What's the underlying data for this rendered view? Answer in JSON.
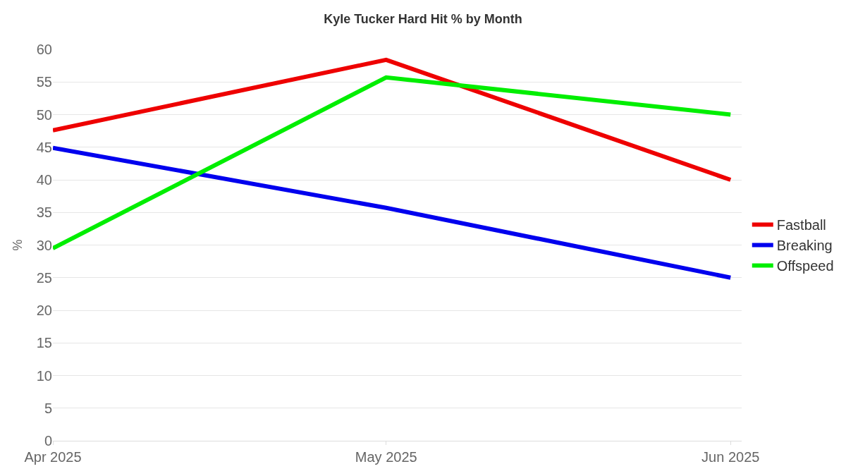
{
  "chart_data": {
    "type": "line",
    "title": "Kyle Tucker Hard Hit % by Month",
    "ylabel": "%",
    "x": [
      "2025-04-01",
      "2025-05-01",
      "2025-06-01"
    ],
    "series": [
      {
        "name": "Fastball",
        "color": "#ee0000",
        "values": [
          47.6,
          58.4,
          40
        ]
      },
      {
        "name": "Breaking",
        "color": "#0000ee",
        "values": [
          44.9,
          35.7,
          25
        ]
      },
      {
        "name": "Offspeed",
        "color": "#00ee00",
        "values": [
          29.5,
          55.7,
          50
        ]
      }
    ],
    "xlim": [
      "2025-04-01",
      "2025-06-02"
    ],
    "xticks": [
      {
        "value": "2025-04-01",
        "label": "Apr 2025"
      },
      {
        "value": "2025-05-01",
        "label": "May 2025"
      },
      {
        "value": "2025-06-01",
        "label": "Jun 2025"
      }
    ],
    "ylim": [
      0,
      60
    ],
    "yticks": [
      0,
      5,
      10,
      15,
      20,
      25,
      30,
      35,
      40,
      45,
      50,
      55,
      60
    ],
    "grid": "y",
    "legend": "right",
    "marker": "none",
    "line_style": "solid"
  }
}
